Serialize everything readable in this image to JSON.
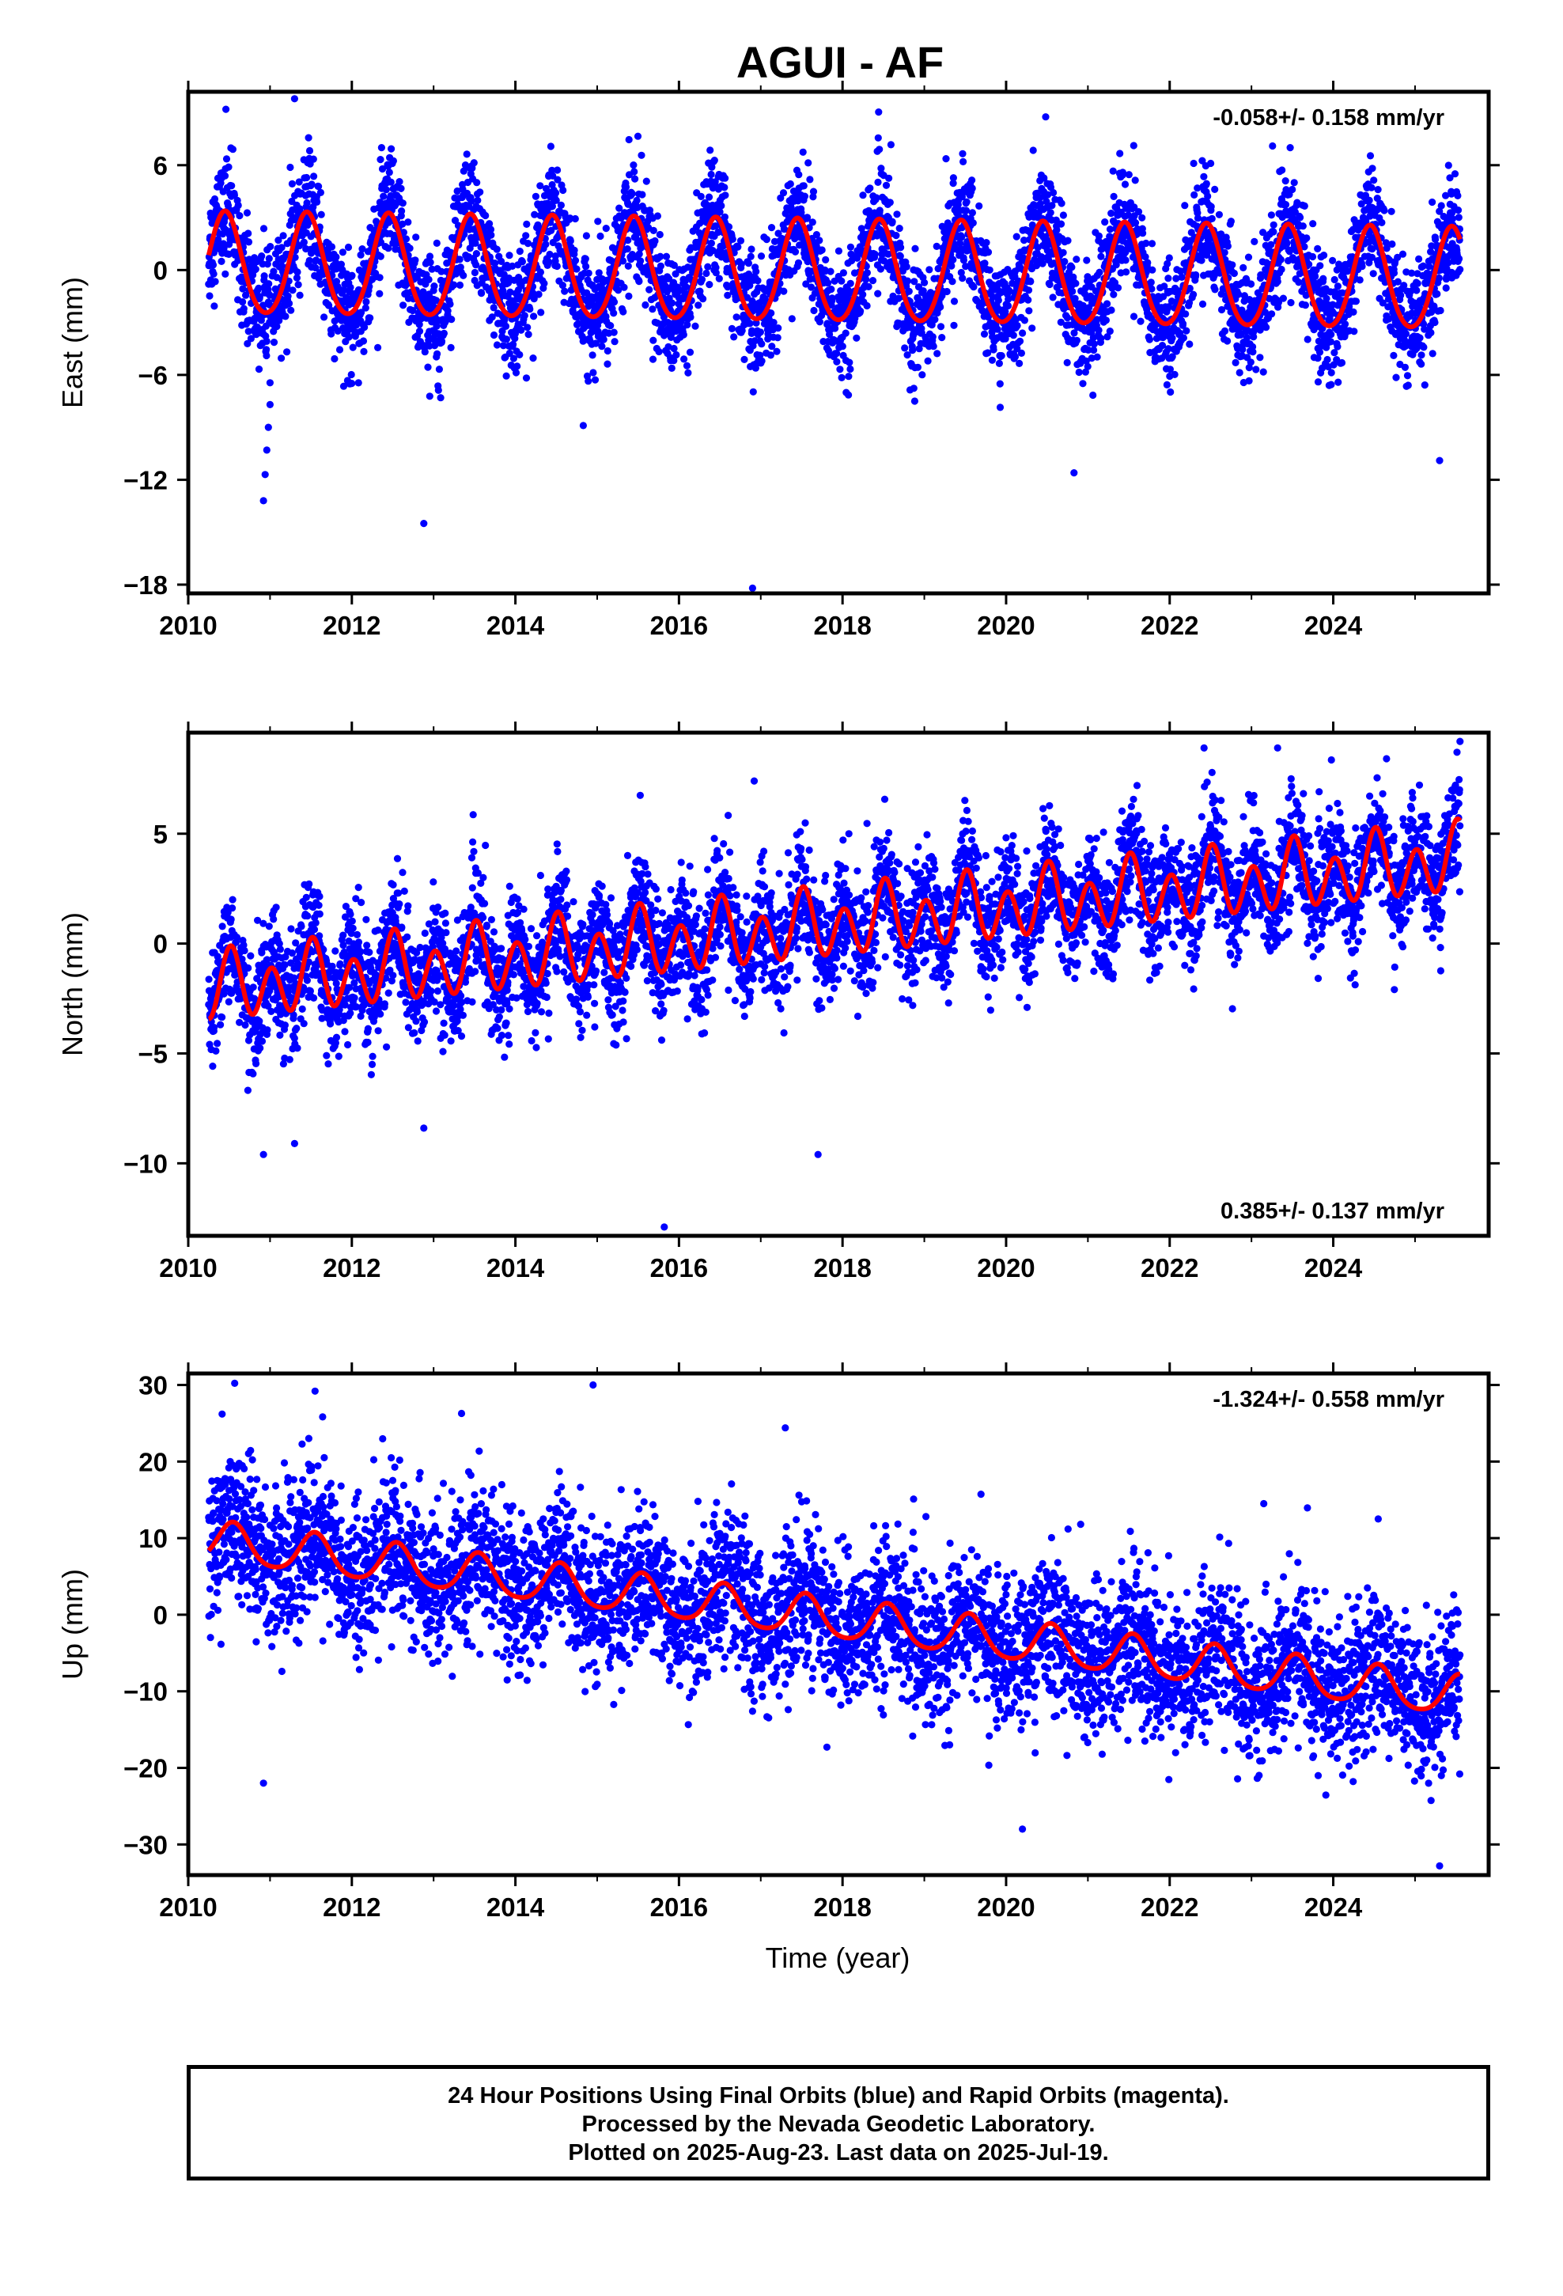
{
  "title": "AGUI - AF",
  "xlabel": "Time (year)",
  "colors": {
    "points": "#0000ff",
    "model": "#ff0000",
    "frame": "#000000"
  },
  "footer": {
    "line1": "24 Hour Positions Using Final Orbits (blue) and Rapid Orbits (magenta).",
    "line2": "Processed by the Nevada Geodetic Laboratory.",
    "line3": "Plotted on 2025-Aug-23. Last data on 2025-Jul-19."
  },
  "chart_data": [
    {
      "type": "scatter",
      "panel": "east",
      "ylabel": "East (mm)",
      "rate": "-0.058+/- 0.158 mm/yr",
      "rate_position": "top-right",
      "xlim": [
        2010.0,
        2025.9
      ],
      "ylim": [
        -18.5,
        10.2
      ],
      "x_ticks": [
        2010,
        2012,
        2014,
        2016,
        2018,
        2020,
        2022,
        2024
      ],
      "x_tick_labels": [
        "2010",
        "2012",
        "2014",
        "2016",
        "2018",
        "2020",
        "2022",
        "2024"
      ],
      "y_ticks": [
        -18,
        -12,
        -6,
        0,
        6
      ],
      "y_tick_labels": [
        "−18",
        "−12",
        "−6",
        "0",
        "6"
      ],
      "data_start": 2010.25,
      "data_end": 2025.55,
      "series": [
        {
          "kind": "daily positions (final orbits)",
          "color": "#0000ff",
          "noise_sd_mm": 1.6
        },
        {
          "kind": "model fit",
          "color": "#ff0000",
          "offset_mm": 0.2,
          "rate_mm_yr": -0.058,
          "annual_amp_mm": 2.9,
          "semiannual_amp_mm": 0.3,
          "peak_year_fraction": 0.45
        }
      ],
      "outliers": [
        {
          "x": 2010.92,
          "y": -13.2
        },
        {
          "x": 2010.94,
          "y": -11.7
        },
        {
          "x": 2010.96,
          "y": -10.3
        },
        {
          "x": 2010.98,
          "y": -9.0
        },
        {
          "x": 2011.0,
          "y": -7.7
        },
        {
          "x": 2012.88,
          "y": -14.5
        },
        {
          "x": 2016.9,
          "y": -18.2
        },
        {
          "x": 2014.83,
          "y": -8.9
        },
        {
          "x": 2020.83,
          "y": -11.6
        },
        {
          "x": 2025.3,
          "y": -10.9
        },
        {
          "x": 2010.46,
          "y": 9.2
        },
        {
          "x": 2011.3,
          "y": 9.8
        }
      ]
    },
    {
      "type": "scatter",
      "panel": "north",
      "ylabel": "North (mm)",
      "rate": "0.385+/- 0.137 mm/yr",
      "rate_position": "bottom-right",
      "xlim": [
        2010.0,
        2025.9
      ],
      "ylim": [
        -13.3,
        9.6
      ],
      "x_ticks": [
        2010,
        2012,
        2014,
        2016,
        2018,
        2020,
        2022,
        2024
      ],
      "x_tick_labels": [
        "2010",
        "2012",
        "2014",
        "2016",
        "2018",
        "2020",
        "2022",
        "2024"
      ],
      "y_ticks": [
        -10,
        -5,
        0,
        5
      ],
      "y_tick_labels": [
        "−10",
        "−5",
        "0",
        "5"
      ],
      "data_start": 2010.25,
      "data_end": 2025.55,
      "series": [
        {
          "kind": "daily positions (final orbits)",
          "color": "#0000ff",
          "noise_sd_mm": 1.3
        },
        {
          "kind": "model fit",
          "color": "#ff0000",
          "offset_mm": -2.1,
          "rate_mm_yr": 0.385,
          "annual_amp_mm": 0.6,
          "semiannual_amp_mm": 1.3,
          "peak_year_fraction": 0.52
        }
      ],
      "outliers": [
        {
          "x": 2015.82,
          "y": -12.9
        },
        {
          "x": 2016.92,
          "y": 7.4
        },
        {
          "x": 2017.7,
          "y": -9.6
        },
        {
          "x": 2010.92,
          "y": -9.6
        },
        {
          "x": 2011.3,
          "y": -9.1
        },
        {
          "x": 2012.88,
          "y": -8.4
        },
        {
          "x": 2025.55,
          "y": 9.2
        },
        {
          "x": 2022.42,
          "y": 8.9
        },
        {
          "x": 2023.32,
          "y": 8.9
        }
      ]
    },
    {
      "type": "scatter",
      "panel": "up",
      "ylabel": "Up (mm)",
      "rate": "-1.324+/- 0.558 mm/yr",
      "rate_position": "top-right",
      "xlim": [
        2010.0,
        2025.9
      ],
      "ylim": [
        -34.0,
        31.5
      ],
      "x_ticks": [
        2010,
        2012,
        2014,
        2016,
        2018,
        2020,
        2022,
        2024
      ],
      "x_tick_labels": [
        "2010",
        "2012",
        "2014",
        "2016",
        "2018",
        "2020",
        "2022",
        "2024"
      ],
      "y_ticks": [
        -30,
        -20,
        -10,
        0,
        10,
        20,
        30
      ],
      "y_tick_labels": [
        "−30",
        "−20",
        "−10",
        "0",
        "10",
        "20",
        "30"
      ],
      "data_start": 2010.25,
      "data_end": 2025.55,
      "series": [
        {
          "kind": "daily positions (final orbits)",
          "color": "#0000ff",
          "noise_sd_mm": 4.8
        },
        {
          "kind": "model fit",
          "color": "#ff0000",
          "offset_mm": 9.5,
          "rate_mm_yr": -1.324,
          "annual_amp_mm": 2.6,
          "semiannual_amp_mm": 0.4,
          "peak_year_fraction": 0.55
        }
      ],
      "outliers": [
        {
          "x": 2014.95,
          "y": 30.0
        },
        {
          "x": 2011.55,
          "y": 29.2
        },
        {
          "x": 2010.92,
          "y": -22.0
        },
        {
          "x": 2025.3,
          "y": -32.8
        },
        {
          "x": 2020.2,
          "y": -28.0
        },
        {
          "x": 2017.3,
          "y": 24.4
        },
        {
          "x": 2016.9,
          "y": -12.6
        },
        {
          "x": 2023.15,
          "y": 14.5
        },
        {
          "x": 2024.55,
          "y": 12.5
        }
      ]
    }
  ]
}
